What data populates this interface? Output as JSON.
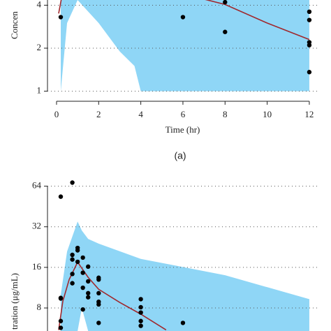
{
  "chart_data": [
    {
      "type": "line",
      "log_y": true,
      "grid": true,
      "ylabel": "Concen",
      "xlabel": "Time (hr)",
      "caption": "(a)",
      "xlim": [
        -0.43,
        12.4
      ],
      "xticks": [
        0,
        2,
        4,
        6,
        8,
        10,
        12
      ],
      "ylim": [
        0.85,
        4.35
      ],
      "yticks": [
        1,
        2,
        4
      ],
      "band": {
        "color": "#8fd6f6",
        "x": [
          0.2,
          0.5,
          1.0,
          2.0,
          3.0,
          3.7,
          4.0,
          12
        ],
        "upper": [
          4.35,
          4.35,
          4.35,
          4.35,
          4.35,
          4.35,
          4.35,
          4.35
        ],
        "lower": [
          1.0,
          3.0,
          4.35,
          3.0,
          1.9,
          1.5,
          1.0,
          1.0
        ]
      },
      "line": {
        "color": "#a0282d",
        "x": [
          0.1,
          0.25,
          6.5,
          8,
          10,
          12
        ],
        "y": [
          3.5,
          4.6,
          4.6,
          4.05,
          3.0,
          2.3
        ]
      },
      "points": {
        "color": "#000000",
        "x": [
          0.2,
          6,
          8,
          8,
          12,
          12,
          12,
          12,
          12
        ],
        "y": [
          3.3,
          3.3,
          4.2,
          2.6,
          3.6,
          3.15,
          2.2,
          2.1,
          1.36
        ]
      }
    },
    {
      "type": "line",
      "log_y": true,
      "grid": true,
      "ylabel": "tration (μg/mL)",
      "xlim": [
        -0.43,
        12.4
      ],
      "ylim": [
        5.4,
        78
      ],
      "yticks": [
        8,
        16,
        32,
        64
      ],
      "band": {
        "color": "#8fd6f6",
        "x": [
          0.2,
          0.5,
          1.0,
          1.2,
          1.5,
          2,
          4,
          8,
          12
        ],
        "upper": [
          10,
          21,
          35,
          30,
          26,
          24,
          18.5,
          14,
          9.3
        ],
        "lower": [
          5.4,
          5.4,
          5.4,
          8,
          5.4,
          5.4,
          5.4,
          5.4,
          5.4
        ]
      },
      "line": {
        "color": "#a0282d",
        "x": [
          0.1,
          0.3,
          0.6,
          1.0,
          1.5,
          2,
          3,
          4,
          5.2
        ],
        "y": [
          5.5,
          9,
          13,
          17.5,
          13.5,
          11,
          8.8,
          7.2,
          5.5
        ]
      },
      "points": {
        "color": "#000000",
        "x": [
          0.2,
          0.75,
          0.2,
          0.2,
          0.2,
          0.2,
          0.75,
          0.75,
          1,
          1,
          0.75,
          0.75,
          1,
          1.25,
          1.25,
          1.25,
          1.25,
          1.5,
          1.5,
          1.5,
          1.5,
          2,
          2,
          2,
          2,
          2,
          2,
          4,
          4,
          4,
          4,
          4,
          6
        ],
        "y": [
          53.5,
          68,
          9.4,
          9.5,
          6.4,
          5.7,
          19.8,
          18.3,
          22.3,
          21.4,
          14.3,
          12.2,
          17.6,
          18.9,
          14.6,
          11.3,
          7.8,
          16.2,
          12.6,
          10.3,
          9.6,
          13.0,
          13.4,
          10.3,
          8.9,
          8.5,
          6.2,
          9.3,
          8.1,
          7.4,
          6.4,
          5.9,
          6.2
        ]
      }
    }
  ]
}
